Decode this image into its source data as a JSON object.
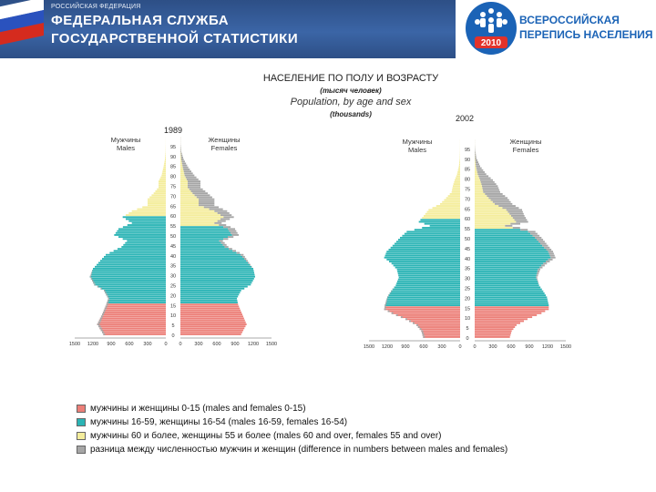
{
  "header": {
    "small_text": "РОССИЙСКАЯ ФЕДЕРАЦИЯ",
    "line1": "ФЕДЕРАЛЬНАЯ СЛУЖБА",
    "line2": "ГОСУДАРСТВЕННОЙ СТАТИСТИКИ",
    "logo_year": "2010",
    "logo_line1": "ВСЕРОССИЙСКАЯ",
    "logo_line2": "ПЕРЕПИСЬ НАСЕЛЕНИЯ"
  },
  "titles": {
    "ru": "НАСЕЛЕНИЕ ПО ПОЛУ И ВОЗРАСТУ",
    "ru_units": "(тысяч человек)",
    "en": "Population, by age and sex",
    "en_units": "(thousands)"
  },
  "colors": {
    "red": "#ec7f78",
    "teal": "#2bb4b5",
    "yellow": "#f4ed9c",
    "gray": "#a6a6a6"
  },
  "legend": [
    {
      "label": "мужчины и женщины 0-15 (males and females 0-15)",
      "color": "#ec7f78"
    },
    {
      "label": "мужчины 16-59, женщины 16-54 (males 16-59, females 16-54)",
      "color": "#2bb4b5"
    },
    {
      "label": "мужчины 60 и более, женщины 55 и более (males 60 and over, females 55 and over)",
      "color": "#f4ed9c"
    },
    {
      "label": "разница между численностью мужчин и женщин (difference in numbers between males and females)",
      "color": "#a6a6a6"
    }
  ],
  "chart_data": [
    {
      "type": "bar",
      "title": "1989",
      "males_label": [
        "Мужчины",
        "Males"
      ],
      "females_label": [
        "Женщины",
        "Females"
      ],
      "x_ticks_left": [
        "1500",
        "1200",
        "900",
        "600",
        "300",
        "0"
      ],
      "x_ticks_right": [
        "0",
        "300",
        "600",
        "900",
        "1200",
        "1500"
      ],
      "age_ticks": [
        "0",
        "5",
        "10",
        "15",
        "20",
        "25",
        "30",
        "35",
        "40",
        "45",
        "50",
        "55",
        "60",
        "65",
        "70",
        "75",
        "80",
        "85",
        "90",
        "95"
      ],
      "age_anchors": [
        [
          0,
          1030,
          1000
        ],
        [
          5,
          1130,
          1090
        ],
        [
          10,
          1050,
          1020
        ],
        [
          15,
          980,
          950
        ],
        [
          18,
          950,
          930
        ],
        [
          22,
          1020,
          1000
        ],
        [
          25,
          1180,
          1160
        ],
        [
          29,
          1250,
          1230
        ],
        [
          33,
          1200,
          1200
        ],
        [
          36,
          1110,
          1130
        ],
        [
          40,
          990,
          1040
        ],
        [
          44,
          730,
          790
        ],
        [
          47,
          640,
          700
        ],
        [
          50,
          850,
          960
        ],
        [
          53,
          780,
          900
        ],
        [
          56,
          560,
          680
        ],
        [
          59,
          710,
          880
        ],
        [
          62,
          560,
          770
        ],
        [
          65,
          300,
          560
        ],
        [
          68,
          300,
          560
        ],
        [
          71,
          200,
          450
        ],
        [
          74,
          120,
          330
        ],
        [
          77,
          120,
          330
        ],
        [
          80,
          70,
          230
        ],
        [
          84,
          40,
          130
        ],
        [
          88,
          15,
          55
        ],
        [
          92,
          4,
          15
        ],
        [
          96,
          1,
          3
        ]
      ],
      "xlim": [
        0,
        1500
      ]
    },
    {
      "type": "bar",
      "title": "2002",
      "males_label": [
        "Мужчины",
        "Males"
      ],
      "females_label": [
        "Женщины",
        "Females"
      ],
      "x_ticks_left": [
        "1500",
        "1200",
        "900",
        "600",
        "300",
        "0"
      ],
      "x_ticks_right": [
        "0",
        "300",
        "600",
        "900",
        "1200",
        "1500"
      ],
      "age_ticks": [
        "0",
        "5",
        "10",
        "15",
        "20",
        "25",
        "30",
        "35",
        "40",
        "45",
        "50",
        "55",
        "60",
        "65",
        "70",
        "75",
        "80",
        "85",
        "90",
        "95"
      ],
      "age_anchors": [
        [
          0,
          610,
          580
        ],
        [
          3,
          640,
          610
        ],
        [
          6,
          720,
          690
        ],
        [
          9,
          900,
          870
        ],
        [
          12,
          1130,
          1100
        ],
        [
          14,
          1250,
          1220
        ],
        [
          16,
          1240,
          1220
        ],
        [
          20,
          1200,
          1190
        ],
        [
          23,
          1140,
          1130
        ],
        [
          26,
          1060,
          1060
        ],
        [
          30,
          1010,
          1030
        ],
        [
          34,
          1040,
          1080
        ],
        [
          37,
          1130,
          1190
        ],
        [
          40,
          1250,
          1330
        ],
        [
          43,
          1210,
          1290
        ],
        [
          47,
          1080,
          1180
        ],
        [
          50,
          990,
          1100
        ],
        [
          53,
          880,
          1000
        ],
        [
          56,
          500,
          620
        ],
        [
          58,
          680,
          880
        ],
        [
          61,
          600,
          820
        ],
        [
          64,
          520,
          780
        ],
        [
          67,
          330,
          620
        ],
        [
          70,
          230,
          540
        ],
        [
          73,
          140,
          420
        ],
        [
          76,
          120,
          380
        ],
        [
          79,
          90,
          300
        ],
        [
          82,
          50,
          190
        ],
        [
          86,
          20,
          90
        ],
        [
          90,
          6,
          30
        ],
        [
          94,
          2,
          8
        ],
        [
          97,
          1,
          2
        ]
      ],
      "xlim": [
        0,
        1500
      ]
    }
  ]
}
